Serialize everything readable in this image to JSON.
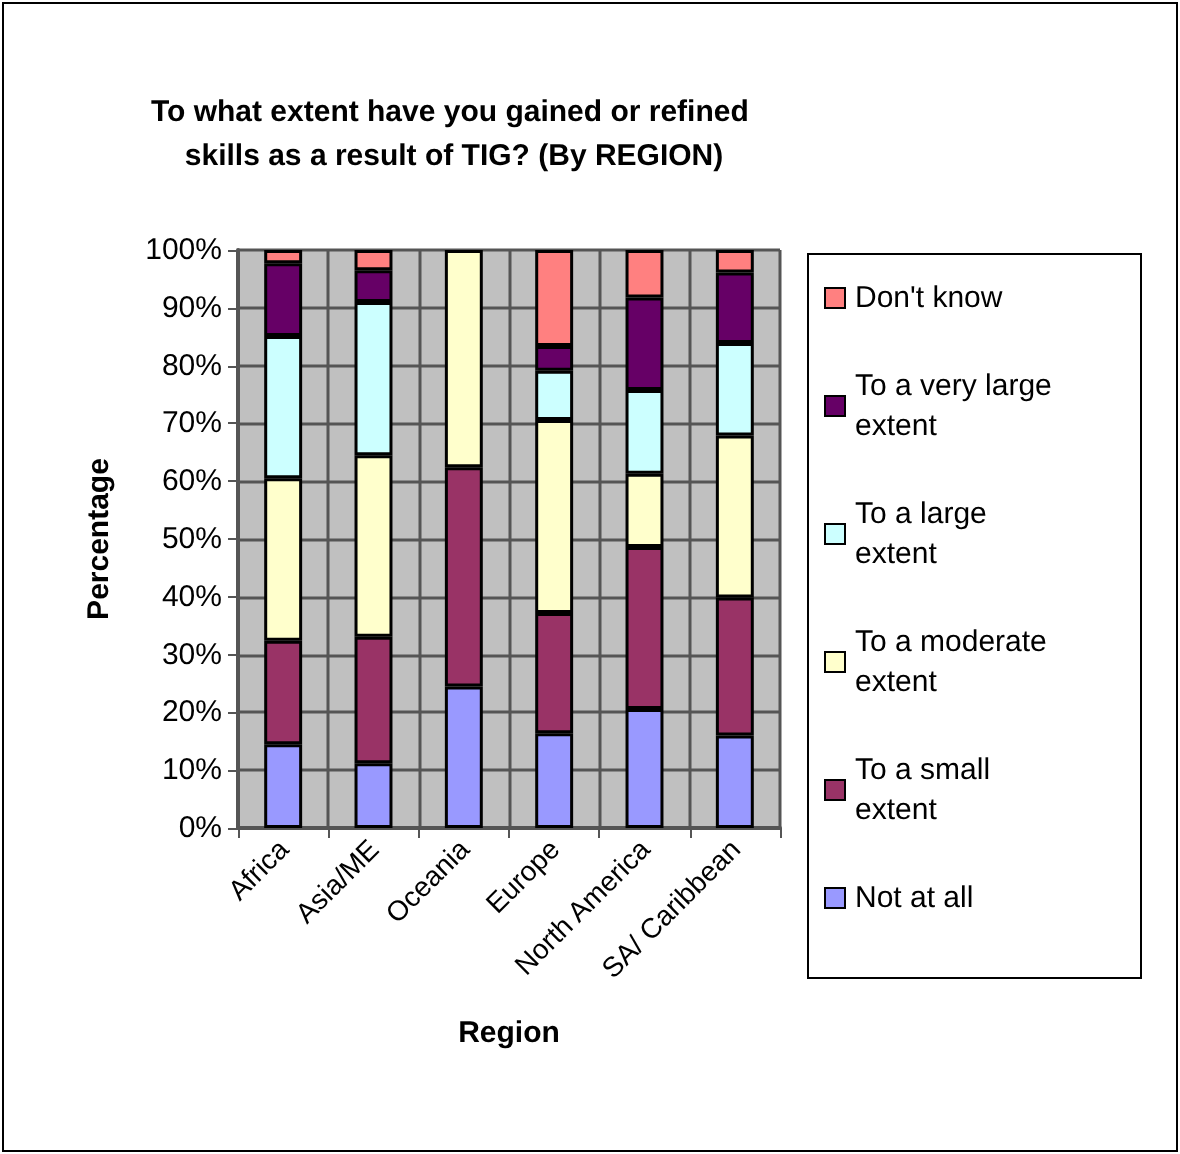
{
  "chart_data": {
    "type": "bar",
    "stacked": true,
    "title": "To what extent have you gained or refined skills as a result of TIG? (By REGION)",
    "xlabel": "Region",
    "ylabel": "Percentage",
    "categories": [
      "Africa",
      "Asia/ME",
      "Oceania",
      "Europe",
      "North America",
      "SA/ Caribbean"
    ],
    "series": [
      {
        "name": "Not at all",
        "color": "#9999ff",
        "values": [
          14.5,
          11.2,
          24.5,
          16.4,
          20.6,
          16.0
        ]
      },
      {
        "name": "To a small extent",
        "color": "#993366",
        "values": [
          17.9,
          21.9,
          37.9,
          20.8,
          28.0,
          23.9
        ]
      },
      {
        "name": "To a moderate extent",
        "color": "#ffffcc",
        "values": [
          28.1,
          31.4,
          37.6,
          33.4,
          12.7,
          28.0
        ]
      },
      {
        "name": "To a large extent",
        "color": "#ccffff",
        "values": [
          24.6,
          26.5,
          null,
          8.5,
          14.5,
          16.0
        ]
      },
      {
        "name": "To a very large extent",
        "color": "#660066",
        "values": [
          12.6,
          5.5,
          null,
          4.3,
          16.0,
          12.2
        ]
      },
      {
        "name": "Don't know",
        "color": "#ff8080",
        "values": [
          2.3,
          3.5,
          null,
          16.6,
          8.2,
          3.9
        ]
      }
    ],
    "ylim": [
      0,
      100
    ],
    "yticks": [
      {
        "value": 0,
        "label": "0%"
      },
      {
        "value": 10,
        "label": "10%"
      },
      {
        "value": 20,
        "label": "20%"
      },
      {
        "value": 30,
        "label": "30%"
      },
      {
        "value": 40,
        "label": "40%"
      },
      {
        "value": 50,
        "label": "50%"
      },
      {
        "value": 60,
        "label": "60%"
      },
      {
        "value": 70,
        "label": "70%"
      },
      {
        "value": 80,
        "label": "80%"
      },
      {
        "value": 90,
        "label": "90%"
      },
      {
        "value": 100,
        "label": "100%"
      }
    ],
    "grid": true,
    "legend": "right"
  }
}
